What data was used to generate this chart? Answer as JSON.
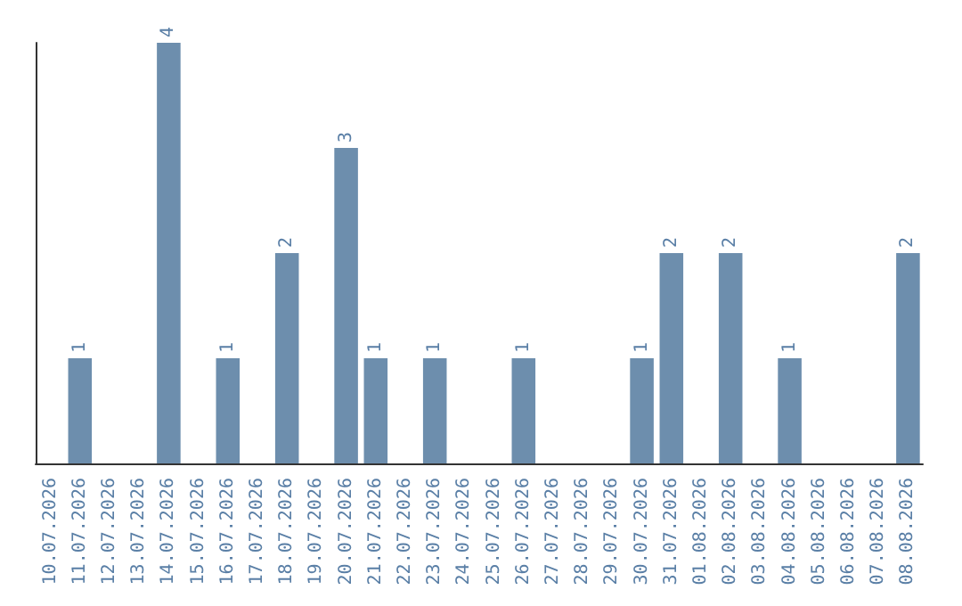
{
  "chart_data": {
    "type": "bar",
    "categories": [
      "10.07.2026",
      "11.07.2026",
      "12.07.2026",
      "13.07.2026",
      "14.07.2026",
      "15.07.2026",
      "16.07.2026",
      "17.07.2026",
      "18.07.2026",
      "19.07.2026",
      "20.07.2026",
      "21.07.2026",
      "22.07.2026",
      "23.07.2026",
      "24.07.2026",
      "25.07.2026",
      "26.07.2026",
      "27.07.2026",
      "28.07.2026",
      "29.07.2026",
      "30.07.2026",
      "31.07.2026",
      "01.08.2026",
      "02.08.2026",
      "03.08.2026",
      "04.08.2026",
      "05.08.2026",
      "06.08.2026",
      "07.08.2026",
      "08.08.2026"
    ],
    "values": [
      0,
      1,
      0,
      0,
      4,
      0,
      1,
      0,
      2,
      0,
      3,
      1,
      0,
      1,
      0,
      0,
      1,
      0,
      0,
      0,
      1,
      2,
      0,
      2,
      0,
      1,
      0,
      0,
      0,
      2
    ],
    "value_labels": [
      null,
      "1",
      null,
      null,
      "4",
      null,
      "1",
      null,
      "2",
      null,
      "3",
      "1",
      null,
      "1",
      null,
      null,
      "1",
      null,
      null,
      null,
      "1",
      "2",
      null,
      "2",
      null,
      "1",
      null,
      null,
      null,
      "2"
    ],
    "color": "#6d8ead",
    "grid": false
  }
}
